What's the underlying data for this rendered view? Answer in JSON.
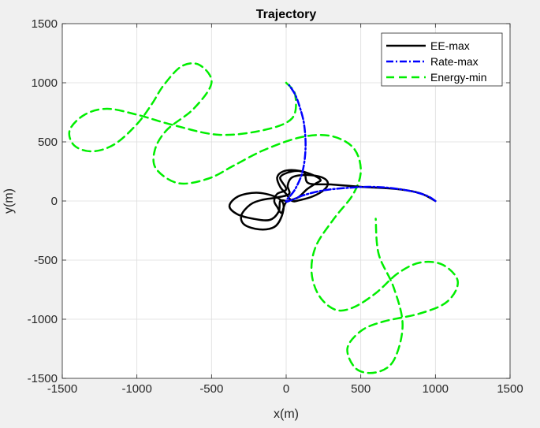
{
  "chart_data": {
    "type": "line",
    "title": "Trajectory",
    "xlabel": "x(m)",
    "ylabel": "y(m)",
    "xlim": [
      -1500,
      1500
    ],
    "ylim": [
      -1500,
      1500
    ],
    "xticks": [
      -1500,
      -1000,
      -500,
      0,
      500,
      1000,
      1500
    ],
    "yticks": [
      -1500,
      -1000,
      -500,
      0,
      500,
      1000,
      1500
    ],
    "grid": true,
    "legend_position": "top-right",
    "series": [
      {
        "name": "EE-max",
        "color": "#000000",
        "style": "solid",
        "points": [
          [
            1000,
            0
          ],
          [
            900,
            65
          ],
          [
            750,
            100
          ],
          [
            500,
            120
          ],
          [
            300,
            140
          ],
          [
            150,
            150
          ],
          [
            120,
            240
          ],
          [
            40,
            250
          ],
          [
            -40,
            200
          ],
          [
            0,
            100
          ],
          [
            -60,
            60
          ],
          [
            -80,
            0
          ],
          [
            -60,
            -50
          ],
          [
            -30,
            -100
          ],
          [
            0,
            -10
          ],
          [
            80,
            30
          ],
          [
            140,
            100
          ],
          [
            200,
            150
          ],
          [
            230,
            180
          ],
          [
            160,
            230
          ],
          [
            60,
            260
          ],
          [
            -20,
            250
          ],
          [
            -60,
            200
          ],
          [
            -40,
            120
          ],
          [
            0,
            60
          ],
          [
            40,
            0
          ],
          [
            100,
            10
          ],
          [
            180,
            40
          ],
          [
            250,
            90
          ],
          [
            280,
            150
          ],
          [
            240,
            200
          ],
          [
            140,
            220
          ],
          [
            40,
            200
          ],
          [
            10,
            130
          ],
          [
            20,
            60
          ],
          [
            -60,
            30
          ],
          [
            -160,
            10
          ],
          [
            -240,
            -30
          ],
          [
            -300,
            -120
          ],
          [
            -280,
            -200
          ],
          [
            -180,
            -240
          ],
          [
            -80,
            -220
          ],
          [
            -30,
            -130
          ],
          [
            -20,
            -20
          ],
          [
            -80,
            40
          ],
          [
            -200,
            70
          ],
          [
            -320,
            40
          ],
          [
            -380,
            -40
          ],
          [
            -330,
            -110
          ],
          [
            -220,
            -150
          ],
          [
            -110,
            -160
          ],
          [
            -50,
            -90
          ],
          [
            -40,
            0
          ],
          [
            0,
            0
          ]
        ]
      },
      {
        "name": "Rate-max",
        "color": "#0000ff",
        "style": "dashdot",
        "points": [
          [
            1000,
            0
          ],
          [
            950,
            40
          ],
          [
            850,
            80
          ],
          [
            700,
            110
          ],
          [
            550,
            120
          ],
          [
            400,
            110
          ],
          [
            250,
            90
          ],
          [
            120,
            50
          ],
          [
            40,
            10
          ],
          [
            0,
            0
          ],
          [
            60,
            100
          ],
          [
            110,
            250
          ],
          [
            130,
            450
          ],
          [
            120,
            650
          ],
          [
            90,
            800
          ],
          [
            60,
            900
          ],
          [
            20,
            980
          ]
        ]
      },
      {
        "name": "Energy-min",
        "color": "#00ee00",
        "style": "dashed",
        "points": [
          [
            0,
            1000
          ],
          [
            60,
            900
          ],
          [
            40,
            700
          ],
          [
            -150,
            600
          ],
          [
            -450,
            560
          ],
          [
            -750,
            640
          ],
          [
            -1000,
            730
          ],
          [
            -1200,
            780
          ],
          [
            -1350,
            730
          ],
          [
            -1450,
            600
          ],
          [
            -1420,
            470
          ],
          [
            -1300,
            420
          ],
          [
            -1150,
            480
          ],
          [
            -1000,
            650
          ],
          [
            -900,
            820
          ],
          [
            -820,
            980
          ],
          [
            -700,
            1140
          ],
          [
            -580,
            1150
          ],
          [
            -500,
            1000
          ],
          [
            -620,
            780
          ],
          [
            -800,
            600
          ],
          [
            -880,
            430
          ],
          [
            -870,
            270
          ],
          [
            -720,
            150
          ],
          [
            -520,
            190
          ],
          [
            -350,
            300
          ],
          [
            -150,
            430
          ],
          [
            100,
            540
          ],
          [
            300,
            550
          ],
          [
            450,
            450
          ],
          [
            500,
            260
          ],
          [
            450,
            60
          ],
          [
            320,
            -150
          ],
          [
            200,
            -380
          ],
          [
            170,
            -600
          ],
          [
            220,
            -800
          ],
          [
            330,
            -920
          ],
          [
            450,
            -900
          ],
          [
            600,
            -780
          ],
          [
            750,
            -610
          ],
          [
            900,
            -520
          ],
          [
            1050,
            -540
          ],
          [
            1150,
            -680
          ],
          [
            1080,
            -850
          ],
          [
            900,
            -950
          ],
          [
            650,
            -1020
          ],
          [
            500,
            -1100
          ],
          [
            410,
            -1250
          ],
          [
            470,
            -1420
          ],
          [
            600,
            -1450
          ],
          [
            720,
            -1350
          ],
          [
            780,
            -1050
          ],
          [
            720,
            -730
          ],
          [
            620,
            -450
          ],
          [
            600,
            -150
          ]
        ]
      }
    ]
  }
}
